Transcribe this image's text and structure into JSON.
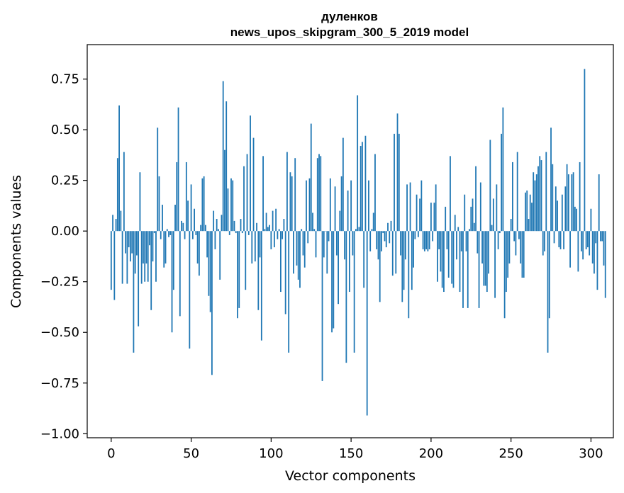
{
  "chart_data": {
    "type": "bar",
    "title": "дуленков",
    "subtitle": "news_upos_skipgram_300_5_2019 model",
    "xlabel": "Vector components",
    "ylabel": "Components values",
    "xlim": [
      -15,
      314
    ],
    "ylim": [
      -1.02,
      0.92
    ],
    "xticks": [
      0,
      50,
      100,
      150,
      200,
      250,
      300
    ],
    "yticks": [
      -1.0,
      -0.75,
      -0.5,
      -0.25,
      0.0,
      0.25,
      0.5,
      0.75
    ],
    "xtick_labels": [
      "0",
      "50",
      "100",
      "150",
      "200",
      "250",
      "300"
    ],
    "ytick_labels": [
      "−1.00",
      "−0.75",
      "−0.50",
      "−0.25",
      "0.00",
      "0.25",
      "0.50",
      "0.75"
    ],
    "grid": false,
    "bar_color": "#1f77b4",
    "series": [
      {
        "values": [
          -0.29,
          0.08,
          -0.34,
          0.06,
          0.36,
          0.62,
          0.1,
          -0.26,
          0.39,
          -0.11,
          -0.26,
          -0.08,
          -0.15,
          -0.11,
          -0.6,
          -0.21,
          -0.12,
          -0.47,
          0.29,
          -0.26,
          -0.16,
          -0.25,
          -0.16,
          -0.25,
          -0.07,
          -0.39,
          -0.15,
          -0.01,
          -0.25,
          0.51,
          0.27,
          -0.04,
          0.13,
          -0.18,
          -0.16,
          0.01,
          -0.03,
          -0.02,
          -0.5,
          -0.29,
          0.13,
          0.34,
          0.61,
          -0.42,
          0.05,
          0.04,
          -0.04,
          0.34,
          0.15,
          -0.58,
          0.23,
          -0.04,
          0.11,
          -0.02,
          -0.16,
          -0.22,
          0.03,
          0.26,
          0.27,
          0.03,
          -0.13,
          -0.32,
          -0.4,
          -0.71,
          0.1,
          -0.09,
          0.06,
          0.01,
          -0.24,
          0.08,
          0.74,
          0.4,
          0.64,
          0.21,
          -0.02,
          0.26,
          0.25,
          0.05,
          -0.01,
          -0.43,
          -0.38,
          0.06,
          -0.01,
          0.32,
          -0.29,
          0.38,
          -0.02,
          0.57,
          -0.16,
          0.46,
          -0.15,
          0.04,
          -0.39,
          -0.13,
          -0.54,
          0.37,
          0.01,
          0.09,
          0.02,
          0.03,
          -0.09,
          0.1,
          -0.08,
          0.11,
          -0.04,
          0.01,
          -0.3,
          -0.04,
          0.06,
          -0.41,
          0.39,
          -0.6,
          0.29,
          0.27,
          -0.21,
          0.36,
          -0.17,
          -0.24,
          -0.28,
          0.01,
          -0.12,
          -0.18,
          0.25,
          -0.06,
          0.26,
          0.53,
          0.09,
          0.01,
          -0.13,
          0.36,
          0.38,
          0.37,
          -0.74,
          -0.13,
          0.0,
          -0.21,
          -0.05,
          0.26,
          -0.5,
          -0.48,
          0.22,
          -0.12,
          -0.36,
          0.1,
          0.27,
          0.46,
          -0.14,
          -0.65,
          0.2,
          -0.3,
          0.25,
          -0.12,
          -0.6,
          0.01,
          0.67,
          0.02,
          0.42,
          0.44,
          -0.28,
          0.47,
          -0.91,
          0.25,
          -0.1,
          0.01,
          0.09,
          0.38,
          -0.09,
          -0.14,
          -0.35,
          -0.1,
          -0.01,
          -0.05,
          -0.08,
          0.04,
          -0.06,
          0.05,
          -0.22,
          0.48,
          -0.21,
          0.58,
          0.48,
          -0.12,
          -0.35,
          -0.29,
          -0.14,
          0.23,
          -0.43,
          0.24,
          -0.29,
          -0.18,
          -0.04,
          0.18,
          -0.03,
          0.16,
          0.25,
          -0.09,
          -0.1,
          -0.09,
          -0.1,
          -0.09,
          0.14,
          -0.05,
          0.14,
          0.23,
          -0.25,
          -0.09,
          -0.2,
          -0.28,
          -0.3,
          0.12,
          -0.09,
          -0.23,
          0.37,
          -0.26,
          -0.28,
          0.08,
          -0.14,
          0.02,
          -0.3,
          -0.1,
          -0.38,
          0.18,
          -0.1,
          -0.38,
          0.01,
          0.12,
          0.16,
          0.04,
          0.32,
          -0.11,
          -0.38,
          0.24,
          -0.16,
          -0.27,
          -0.27,
          -0.3,
          -0.21,
          0.45,
          0.03,
          0.16,
          -0.33,
          0.23,
          -0.09,
          -0.01,
          0.48,
          0.61,
          -0.43,
          -0.3,
          -0.23,
          -0.16,
          0.06,
          0.34,
          -0.05,
          -0.12,
          0.39,
          -0.04,
          -0.16,
          -0.23,
          -0.23,
          0.19,
          0.2,
          0.06,
          0.18,
          0.14,
          0.29,
          0.25,
          0.28,
          0.32,
          0.37,
          0.35,
          -0.12,
          -0.1,
          0.39,
          -0.6,
          -0.43,
          0.51,
          0.33,
          -0.06,
          0.22,
          0.15,
          -0.08,
          -0.09,
          0.18,
          -0.09,
          0.22,
          0.33,
          0.28,
          -0.18,
          0.28,
          0.29,
          0.12,
          0.11,
          -0.2,
          0.34,
          -0.1,
          -0.14,
          0.8,
          -0.09,
          -0.08,
          -0.12,
          0.11,
          -0.16,
          -0.21,
          -0.06,
          -0.29,
          0.28,
          -0.05,
          -0.05,
          -0.17,
          -0.33
        ]
      }
    ]
  }
}
